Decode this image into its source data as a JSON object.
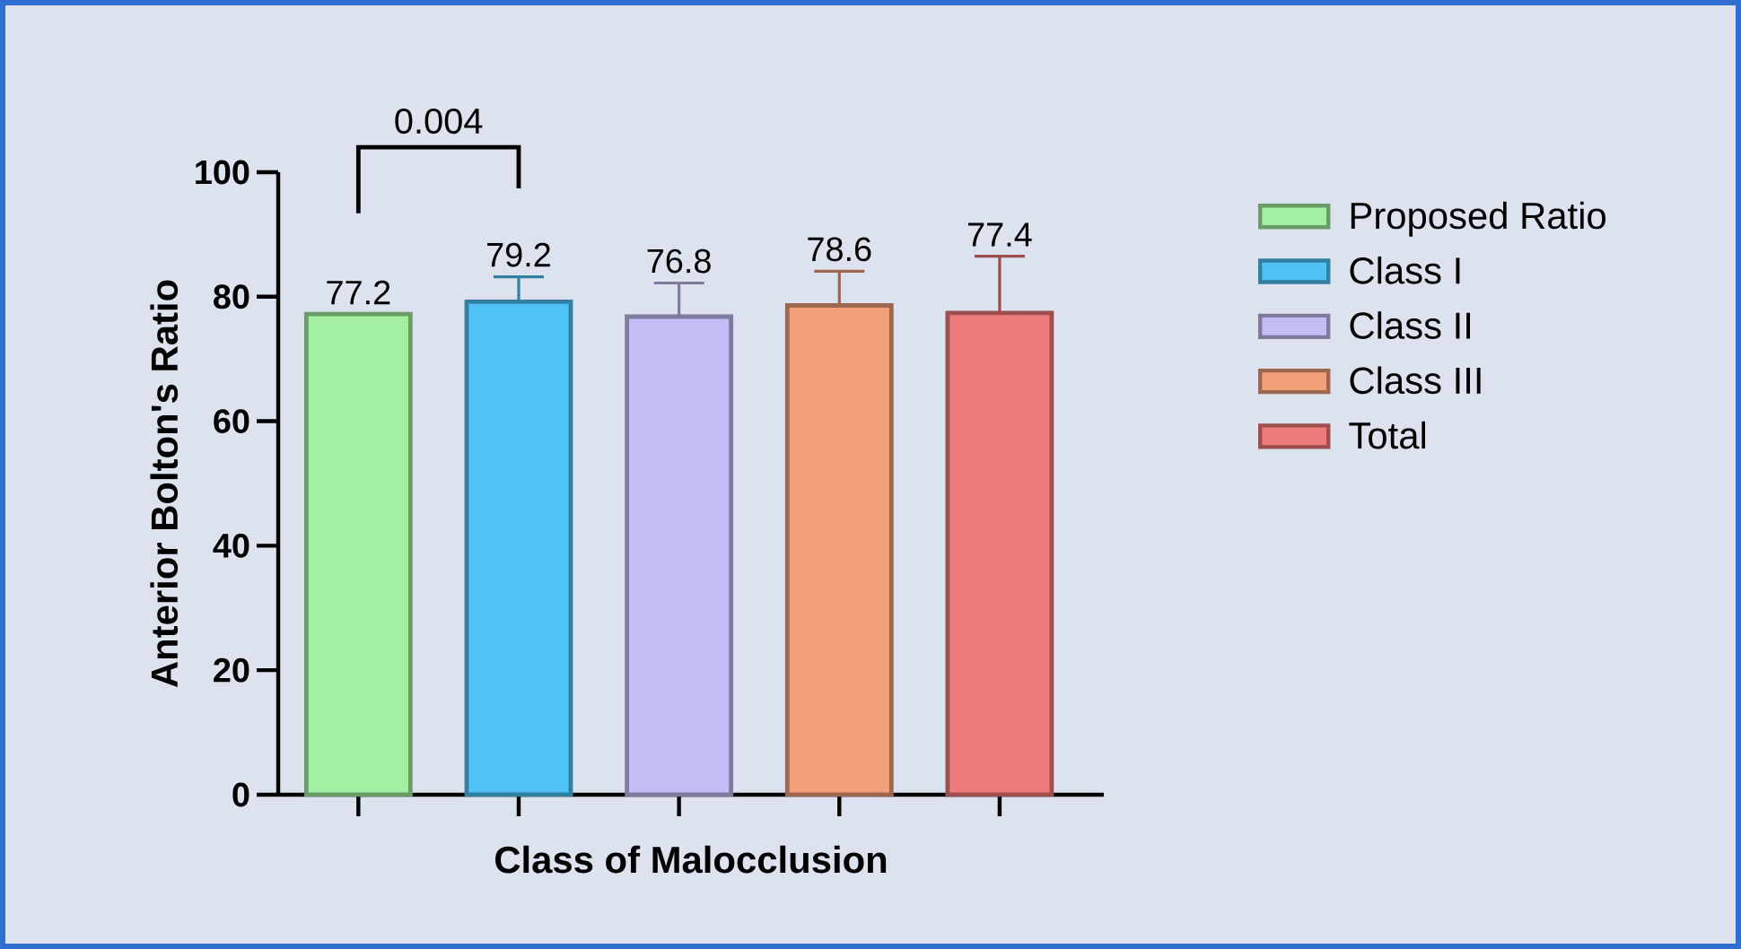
{
  "chart_data": {
    "type": "bar",
    "xlabel": "Class of Malocclusion",
    "ylabel": "Anterior Bolton's Ratio",
    "categories": [
      null,
      null,
      null,
      null,
      null
    ],
    "series": [
      {
        "name": "Proposed Ratio",
        "color": "#a3f0a0",
        "values": [
          77.2,
          null,
          null,
          null,
          null
        ]
      },
      {
        "name": "Class I",
        "color": "#4fc3f7",
        "values": [
          null,
          79.2,
          null,
          null,
          null
        ],
        "errors": [
          null,
          [
            79.2,
            83.2
          ],
          null,
          null,
          null
        ]
      },
      {
        "name": "Class II",
        "color": "#c3bdf5",
        "values": [
          null,
          null,
          76.8,
          null,
          null
        ],
        "errors": [
          null,
          null,
          [
            76.8,
            82.2
          ],
          null,
          null
        ]
      },
      {
        "name": "Class III",
        "color": "#f2a07a",
        "values": [
          null,
          null,
          null,
          78.6,
          null
        ],
        "errors": [
          null,
          null,
          null,
          [
            78.6,
            84.1
          ],
          null
        ]
      },
      {
        "name": "Total",
        "color": "#ee7a7a",
        "values": [
          null,
          null,
          null,
          null,
          77.4
        ],
        "errors": [
          null,
          null,
          null,
          null,
          [
            77.4,
            86.5
          ]
        ]
      }
    ],
    "ylim": [
      0,
      100
    ],
    "yticks": [
      0,
      20,
      40,
      60,
      80,
      100
    ],
    "data_labels": true,
    "legend": "right",
    "annotations": [
      "0.004"
    ]
  }
}
